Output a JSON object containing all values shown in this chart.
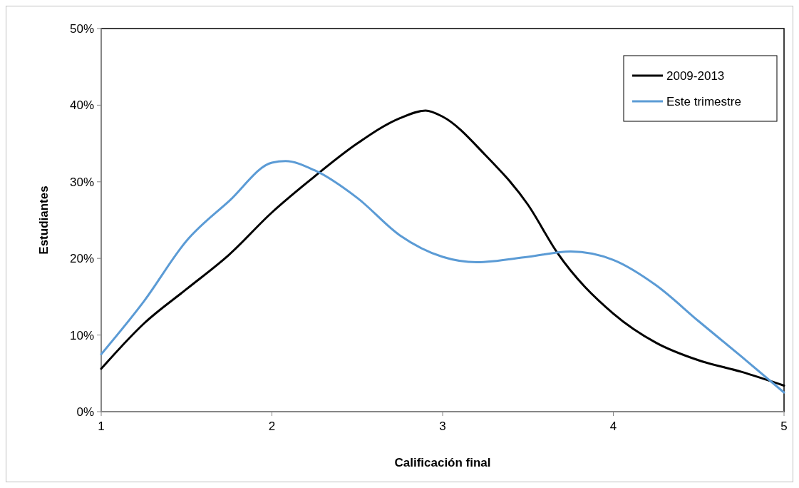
{
  "chart_data": {
    "type": "line",
    "xlabel": "Calificación final",
    "ylabel": "Estudiantes",
    "xlim": [
      1,
      5
    ],
    "xticks": [
      1,
      2,
      3,
      4,
      5
    ],
    "ylim": [
      0,
      50
    ],
    "yticks": [
      {
        "value": 0,
        "label": "0%"
      },
      {
        "value": 10,
        "label": "10%"
      },
      {
        "value": 20,
        "label": "20%"
      },
      {
        "value": 30,
        "label": "30%"
      },
      {
        "value": 40,
        "label": "40%"
      },
      {
        "value": 50,
        "label": "50%"
      }
    ],
    "grid": false,
    "legend": "top right",
    "marker": "none",
    "line_style": "solid",
    "series": [
      {
        "name": "2009-2013",
        "color": "#000000",
        "x": [
          1,
          1.25,
          1.5,
          1.75,
          2,
          2.25,
          2.5,
          2.75,
          2.9,
          3,
          3.25,
          3.5,
          3.67,
          4,
          4.25,
          4.5,
          4.75,
          5
        ],
        "values": [
          5.6,
          11.5,
          16,
          20.5,
          26,
          30.7,
          35,
          38.3,
          39.3,
          38.5,
          33.5,
          27,
          20.8,
          12.8,
          9,
          6.7,
          5.2,
          3.4
        ]
      },
      {
        "name": "Este trimestre",
        "color": "#5b9bd5",
        "x": [
          1,
          1.25,
          1.5,
          1.75,
          2,
          2.08,
          2.25,
          2.5,
          2.75,
          3,
          3.2,
          3.5,
          3.75,
          4,
          4.25,
          4.5,
          4.75,
          5
        ],
        "values": [
          7.5,
          14.4,
          22.3,
          27.5,
          32.5,
          32.7,
          31.5,
          27.9,
          23,
          20.2,
          19.5,
          20.2,
          20.9,
          19.8,
          16.5,
          11.8,
          7.2,
          2.5
        ]
      }
    ]
  }
}
